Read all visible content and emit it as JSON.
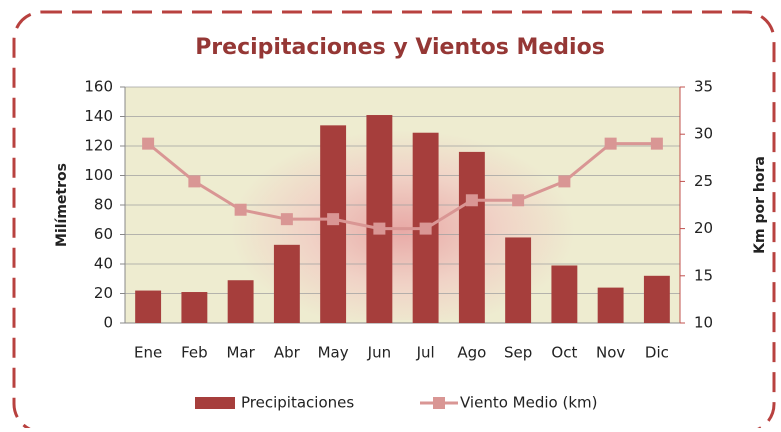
{
  "chart_data": {
    "type": "bar",
    "title": "Precipitaciones y Vientos Medios",
    "y_label": "Milímetros",
    "y2_label": "Km por hora",
    "categories": [
      "Ene",
      "Feb",
      "Mar",
      "Abr",
      "May",
      "Jun",
      "Jul",
      "Ago",
      "Sep",
      "Oct",
      "Nov",
      "Dic"
    ],
    "series": [
      {
        "name": "Precipitaciones",
        "type": "bar",
        "color": "#a63e3c",
        "values": [
          22,
          21,
          29,
          53,
          134,
          141,
          129,
          116,
          58,
          39,
          24,
          32
        ]
      },
      {
        "name": "Viento Medio (km)",
        "type": "line",
        "axis": "y2",
        "color": "#d99694",
        "values": [
          29,
          25,
          22,
          21,
          21,
          20,
          20,
          23,
          23,
          25,
          29,
          29
        ]
      }
    ],
    "ylim": [
      0,
      160
    ],
    "yticks": [
      0,
      20,
      40,
      60,
      80,
      100,
      120,
      140,
      160
    ],
    "y2lim": [
      10,
      35
    ],
    "y2ticks": [
      10,
      15,
      20,
      25,
      30,
      35
    ],
    "grid": true,
    "legend": "bottom"
  }
}
